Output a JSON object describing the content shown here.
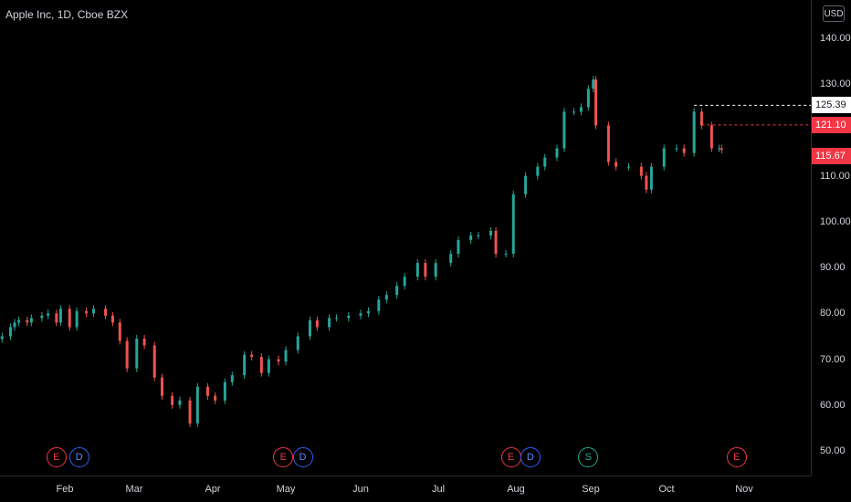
{
  "chart_title": "Apple Inc, 1D, Cboe BZX",
  "currency_button": "USD",
  "price_labels": {
    "high_line": "125.39",
    "mid_line": "121.10",
    "last_price": "115.67"
  },
  "colors": {
    "up": "#26a69a",
    "down": "#ef5350",
    "background": "#000000",
    "high_line": "#ffffff",
    "mid_line": "#f23645",
    "earnings": "#f23645",
    "dividend": "#2962ff",
    "split": "#22ab94"
  },
  "events": [
    {
      "letter": "E",
      "type": "earnings",
      "date": "Jan 28"
    },
    {
      "letter": "D",
      "type": "dividend",
      "date": "Feb 7"
    },
    {
      "letter": "E",
      "type": "earnings",
      "date": "Apr 30"
    },
    {
      "letter": "D",
      "type": "dividend",
      "date": "May 8"
    },
    {
      "letter": "E",
      "type": "earnings",
      "date": "Jul 30"
    },
    {
      "letter": "D",
      "type": "dividend",
      "date": "Aug 7"
    },
    {
      "letter": "S",
      "type": "split",
      "date": "Aug 31"
    },
    {
      "letter": "E",
      "type": "earnings",
      "date": "Oct 29"
    }
  ],
  "chart_data": {
    "type": "candlestick",
    "title": "Apple Inc, 1D, Cboe BZX",
    "currency": "USD",
    "y_ticks": [
      "140.00",
      "130.00",
      "120.00",
      "110.00",
      "100.00",
      "90.00",
      "80.00",
      "70.00",
      "60.00",
      "50.00"
    ],
    "x_ticks": [
      "Feb",
      "Mar",
      "Apr",
      "May",
      "Jun",
      "Jul",
      "Aug",
      "Sep",
      "Oct",
      "Nov"
    ],
    "ylim": [
      45,
      145
    ],
    "high_line": 125.39,
    "mid_line": 121.1,
    "last_price": 115.67,
    "series": [
      {
        "date": "Jan 2",
        "close": 75
      },
      {
        "date": "Jan 6",
        "close": 77
      },
      {
        "date": "Jan 8",
        "close": 78
      },
      {
        "date": "Jan 10",
        "close": 78.5
      },
      {
        "date": "Jan 14",
        "close": 78
      },
      {
        "date": "Jan 16",
        "close": 79
      },
      {
        "date": "Jan 21",
        "close": 79.5
      },
      {
        "date": "Jan 24",
        "close": 80
      },
      {
        "date": "Jan 28",
        "close": 78
      },
      {
        "date": "Jan 30",
        "close": 81
      },
      {
        "date": "Feb 3",
        "close": 77
      },
      {
        "date": "Feb 6",
        "close": 80.5
      },
      {
        "date": "Feb 10",
        "close": 80
      },
      {
        "date": "Feb 13",
        "close": 81
      },
      {
        "date": "Feb 18",
        "close": 79.5
      },
      {
        "date": "Feb 21",
        "close": 78
      },
      {
        "date": "Feb 24",
        "close": 74
      },
      {
        "date": "Feb 27",
        "close": 68
      },
      {
        "date": "Mar 2",
        "close": 74.5
      },
      {
        "date": "Mar 5",
        "close": 73
      },
      {
        "date": "Mar 9",
        "close": 66
      },
      {
        "date": "Mar 12",
        "close": 62
      },
      {
        "date": "Mar 16",
        "close": 60
      },
      {
        "date": "Mar 19",
        "close": 61
      },
      {
        "date": "Mar 23",
        "close": 56
      },
      {
        "date": "Mar 26",
        "close": 64
      },
      {
        "date": "Mar 30",
        "close": 62
      },
      {
        "date": "Apr 2",
        "close": 61
      },
      {
        "date": "Apr 6",
        "close": 65
      },
      {
        "date": "Apr 9",
        "close": 66.5
      },
      {
        "date": "Apr 14",
        "close": 71
      },
      {
        "date": "Apr 17",
        "close": 70.5
      },
      {
        "date": "Apr 21",
        "close": 67
      },
      {
        "date": "Apr 24",
        "close": 70
      },
      {
        "date": "Apr 28",
        "close": 69.5
      },
      {
        "date": "May 1",
        "close": 72
      },
      {
        "date": "May 6",
        "close": 75
      },
      {
        "date": "May 11",
        "close": 78.5
      },
      {
        "date": "May 14",
        "close": 77
      },
      {
        "date": "May 19",
        "close": 79
      },
      {
        "date": "May 22",
        "close": 79
      },
      {
        "date": "May 27",
        "close": 79.5
      },
      {
        "date": "Jun 1",
        "close": 80
      },
      {
        "date": "Jun 4",
        "close": 80.5
      },
      {
        "date": "Jun 8",
        "close": 83
      },
      {
        "date": "Jun 11",
        "close": 84
      },
      {
        "date": "Jun 15",
        "close": 86
      },
      {
        "date": "Jun 18",
        "close": 88
      },
      {
        "date": "Jun 23",
        "close": 91
      },
      {
        "date": "Jun 26",
        "close": 88
      },
      {
        "date": "Jun 30",
        "close": 91
      },
      {
        "date": "Jul 6",
        "close": 93
      },
      {
        "date": "Jul 9",
        "close": 96
      },
      {
        "date": "Jul 14",
        "close": 97
      },
      {
        "date": "Jul 17",
        "close": 97
      },
      {
        "date": "Jul 22",
        "close": 98
      },
      {
        "date": "Jul 24",
        "close": 93
      },
      {
        "date": "Jul 28",
        "close": 93
      },
      {
        "date": "Jul 31",
        "close": 106
      },
      {
        "date": "Aug 5",
        "close": 110
      },
      {
        "date": "Aug 10",
        "close": 112
      },
      {
        "date": "Aug 13",
        "close": 114
      },
      {
        "date": "Aug 18",
        "close": 116
      },
      {
        "date": "Aug 21",
        "close": 124
      },
      {
        "date": "Aug 25",
        "close": 124
      },
      {
        "date": "Aug 28",
        "close": 125
      },
      {
        "date": "Aug 31",
        "close": 129
      },
      {
        "date": "Sep 2",
        "close": 131
      },
      {
        "date": "Sep 3",
        "close": 121
      },
      {
        "date": "Sep 8",
        "close": 113
      },
      {
        "date": "Sep 11",
        "close": 112
      },
      {
        "date": "Sep 16",
        "close": 112
      },
      {
        "date": "Sep 21",
        "close": 110
      },
      {
        "date": "Sep 23",
        "close": 107
      },
      {
        "date": "Sep 25",
        "close": 112
      },
      {
        "date": "Sep 30",
        "close": 116
      },
      {
        "date": "Oct 5",
        "close": 116
      },
      {
        "date": "Oct 8",
        "close": 115
      },
      {
        "date": "Oct 12",
        "close": 124
      },
      {
        "date": "Oct 15",
        "close": 121
      },
      {
        "date": "Oct 19",
        "close": 116
      },
      {
        "date": "Oct 22",
        "close": 116
      },
      {
        "date": "Oct 23",
        "close": 115.67
      }
    ]
  }
}
